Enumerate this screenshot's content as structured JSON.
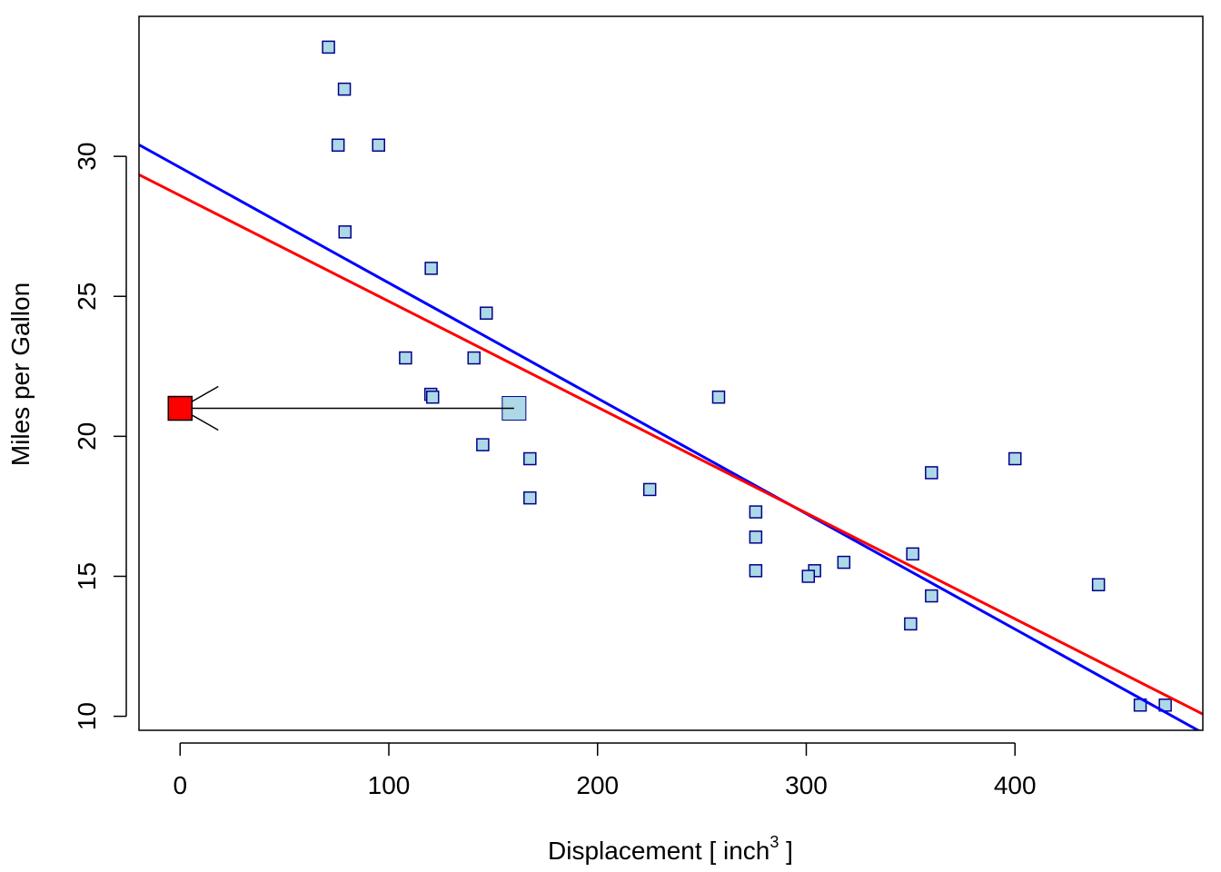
{
  "chart_data": {
    "type": "scatter",
    "title": "",
    "xlabel": "Displacement [ inch",
    "xlabel_sup": "3",
    "xlabel_tail": " ]",
    "ylabel": "Miles per Gallon",
    "xlim": [
      -19.7,
      490
    ],
    "ylim": [
      9.5,
      35.0
    ],
    "x_ticks": [
      0,
      100,
      200,
      300,
      400
    ],
    "x_tick_labels": [
      "0",
      "100",
      "200",
      "300",
      "400"
    ],
    "y_ticks": [
      10,
      15,
      20,
      25,
      30
    ],
    "y_tick_labels": [
      "10",
      "15",
      "20",
      "25",
      "30"
    ],
    "grid": false,
    "legend": "none",
    "series": [
      {
        "points": [
          [
            160,
            21.0
          ],
          [
            160,
            21.0
          ],
          [
            108,
            22.8
          ],
          [
            258,
            21.4
          ],
          [
            360,
            18.7
          ],
          [
            225,
            18.1
          ],
          [
            360,
            14.3
          ],
          [
            146.7,
            24.4
          ],
          [
            140.8,
            22.8
          ],
          [
            167.6,
            19.2
          ],
          [
            167.6,
            17.8
          ],
          [
            275.8,
            16.4
          ],
          [
            275.8,
            17.3
          ],
          [
            275.8,
            15.2
          ],
          [
            472,
            10.4
          ],
          [
            460,
            10.4
          ],
          [
            440,
            14.7
          ],
          [
            78.7,
            32.4
          ],
          [
            75.7,
            30.4
          ],
          [
            71.1,
            33.9
          ],
          [
            120.1,
            21.5
          ],
          [
            318,
            15.5
          ],
          [
            304,
            15.2
          ],
          [
            350,
            13.3
          ],
          [
            400,
            19.2
          ],
          [
            79,
            27.3
          ],
          [
            120.3,
            26.0
          ],
          [
            95.1,
            30.4
          ],
          [
            351,
            15.8
          ],
          [
            145,
            19.7
          ],
          [
            301,
            15.0
          ],
          [
            121,
            21.4
          ]
        ],
        "fill": "#add8e6",
        "stroke": "#00008b"
      }
    ],
    "highlighted_point": {
      "x": 160,
      "y": 21.0,
      "fill": "#add8e6",
      "stroke": "#00008b"
    },
    "projected_point": {
      "x": 0,
      "y": 21.0,
      "fill": "#ff0000",
      "stroke": "#000000"
    },
    "lines": [
      {
        "intercept": 29.6,
        "slope": -0.041215,
        "color": "#0000ff"
      },
      {
        "intercept": 28.6,
        "slope": -0.0378,
        "color": "#ff0000"
      }
    ]
  }
}
